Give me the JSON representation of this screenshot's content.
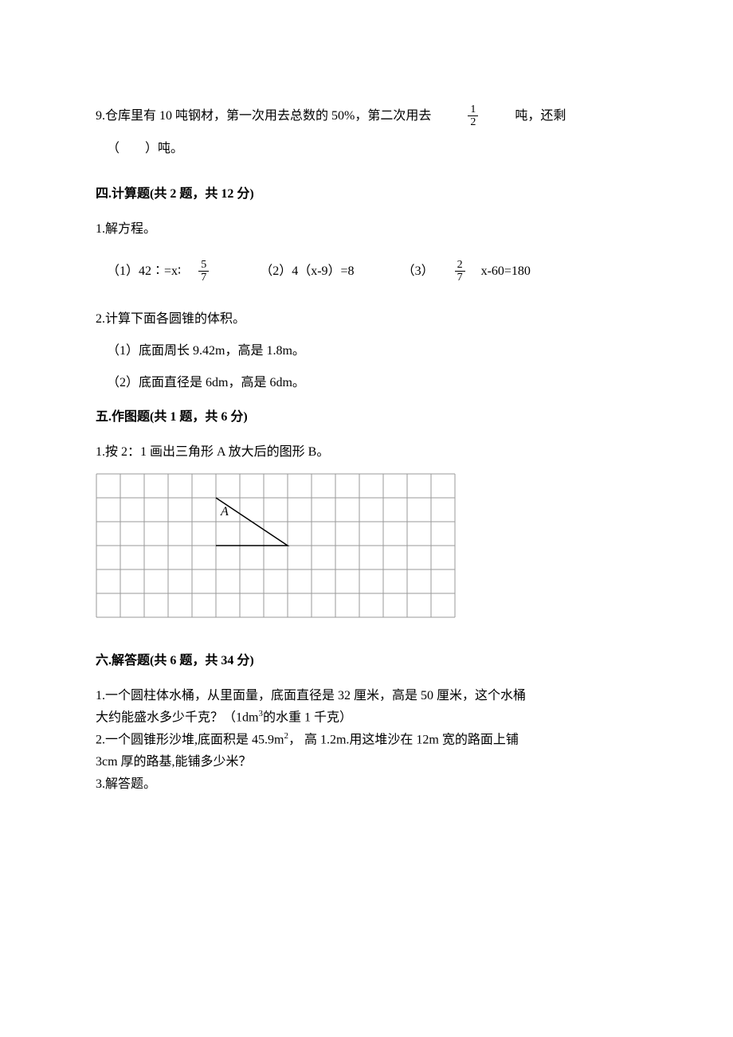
{
  "q9": {
    "part1": "9.仓库里有 10 吨钢材，第一次用去总数的 50%，第二次用去",
    "frac_num": "1",
    "frac_den": "2",
    "part2": "吨，还剩",
    "line2": "（　　）吨。"
  },
  "section4": {
    "header": "四.计算题(共 2 题，共 12 分)",
    "q1_lead": "1.解方程。",
    "eq1_label": "（1）42∶=x∶",
    "eq1_num": "5",
    "eq1_den": "7",
    "eq2": "（2）4（x-9）=8",
    "eq3_label": "（3）",
    "eq3_num": "2",
    "eq3_den": "7",
    "eq3_tail": "x-60=180",
    "q2_lead": "2.计算下面各圆锥的体积。",
    "q2_a": "（1）底面周长 9.42m，高是 1.8m。",
    "q2_b": "（2）底面直径是 6dm，高是 6dm。"
  },
  "section5": {
    "header": "五.作图题(共 1 题，共 6 分)",
    "q1": "1.按 2：1 画出三角形 A 放大后的图形 B。",
    "grid": {
      "cols": 15,
      "rows": 6,
      "cell": 30,
      "line_color": "#9a9a9a",
      "label": "A",
      "label_col": 5,
      "label_row_top": 1,
      "triangle": {
        "points": [
          [
            5,
            1
          ],
          [
            8,
            3
          ],
          [
            5,
            3
          ]
        ],
        "stroke": "#000000",
        "stroke_width": 1.5
      }
    }
  },
  "section6": {
    "header": "六.解答题(共 6 题，共 34 分)",
    "q1a": "1.一个圆柱体水桶，从里面量，底面直径是 32 厘米，高是 50 厘米，这个水桶",
    "q1b_pre": "大约能盛水多少千克？（1dm",
    "q1b_sup": "3",
    "q1b_post": "的水重 1 千克）",
    "q2a_pre": "2.一个圆锥形沙堆,底面积是 45.9m",
    "q2a_sup": "2",
    "q2a_post": "， 高 1.2m.用这堆沙在 12m 宽的路面上铺",
    "q2b": "3cm 厚的路基,能铺多少米？",
    "q3": "3.解答题。"
  }
}
